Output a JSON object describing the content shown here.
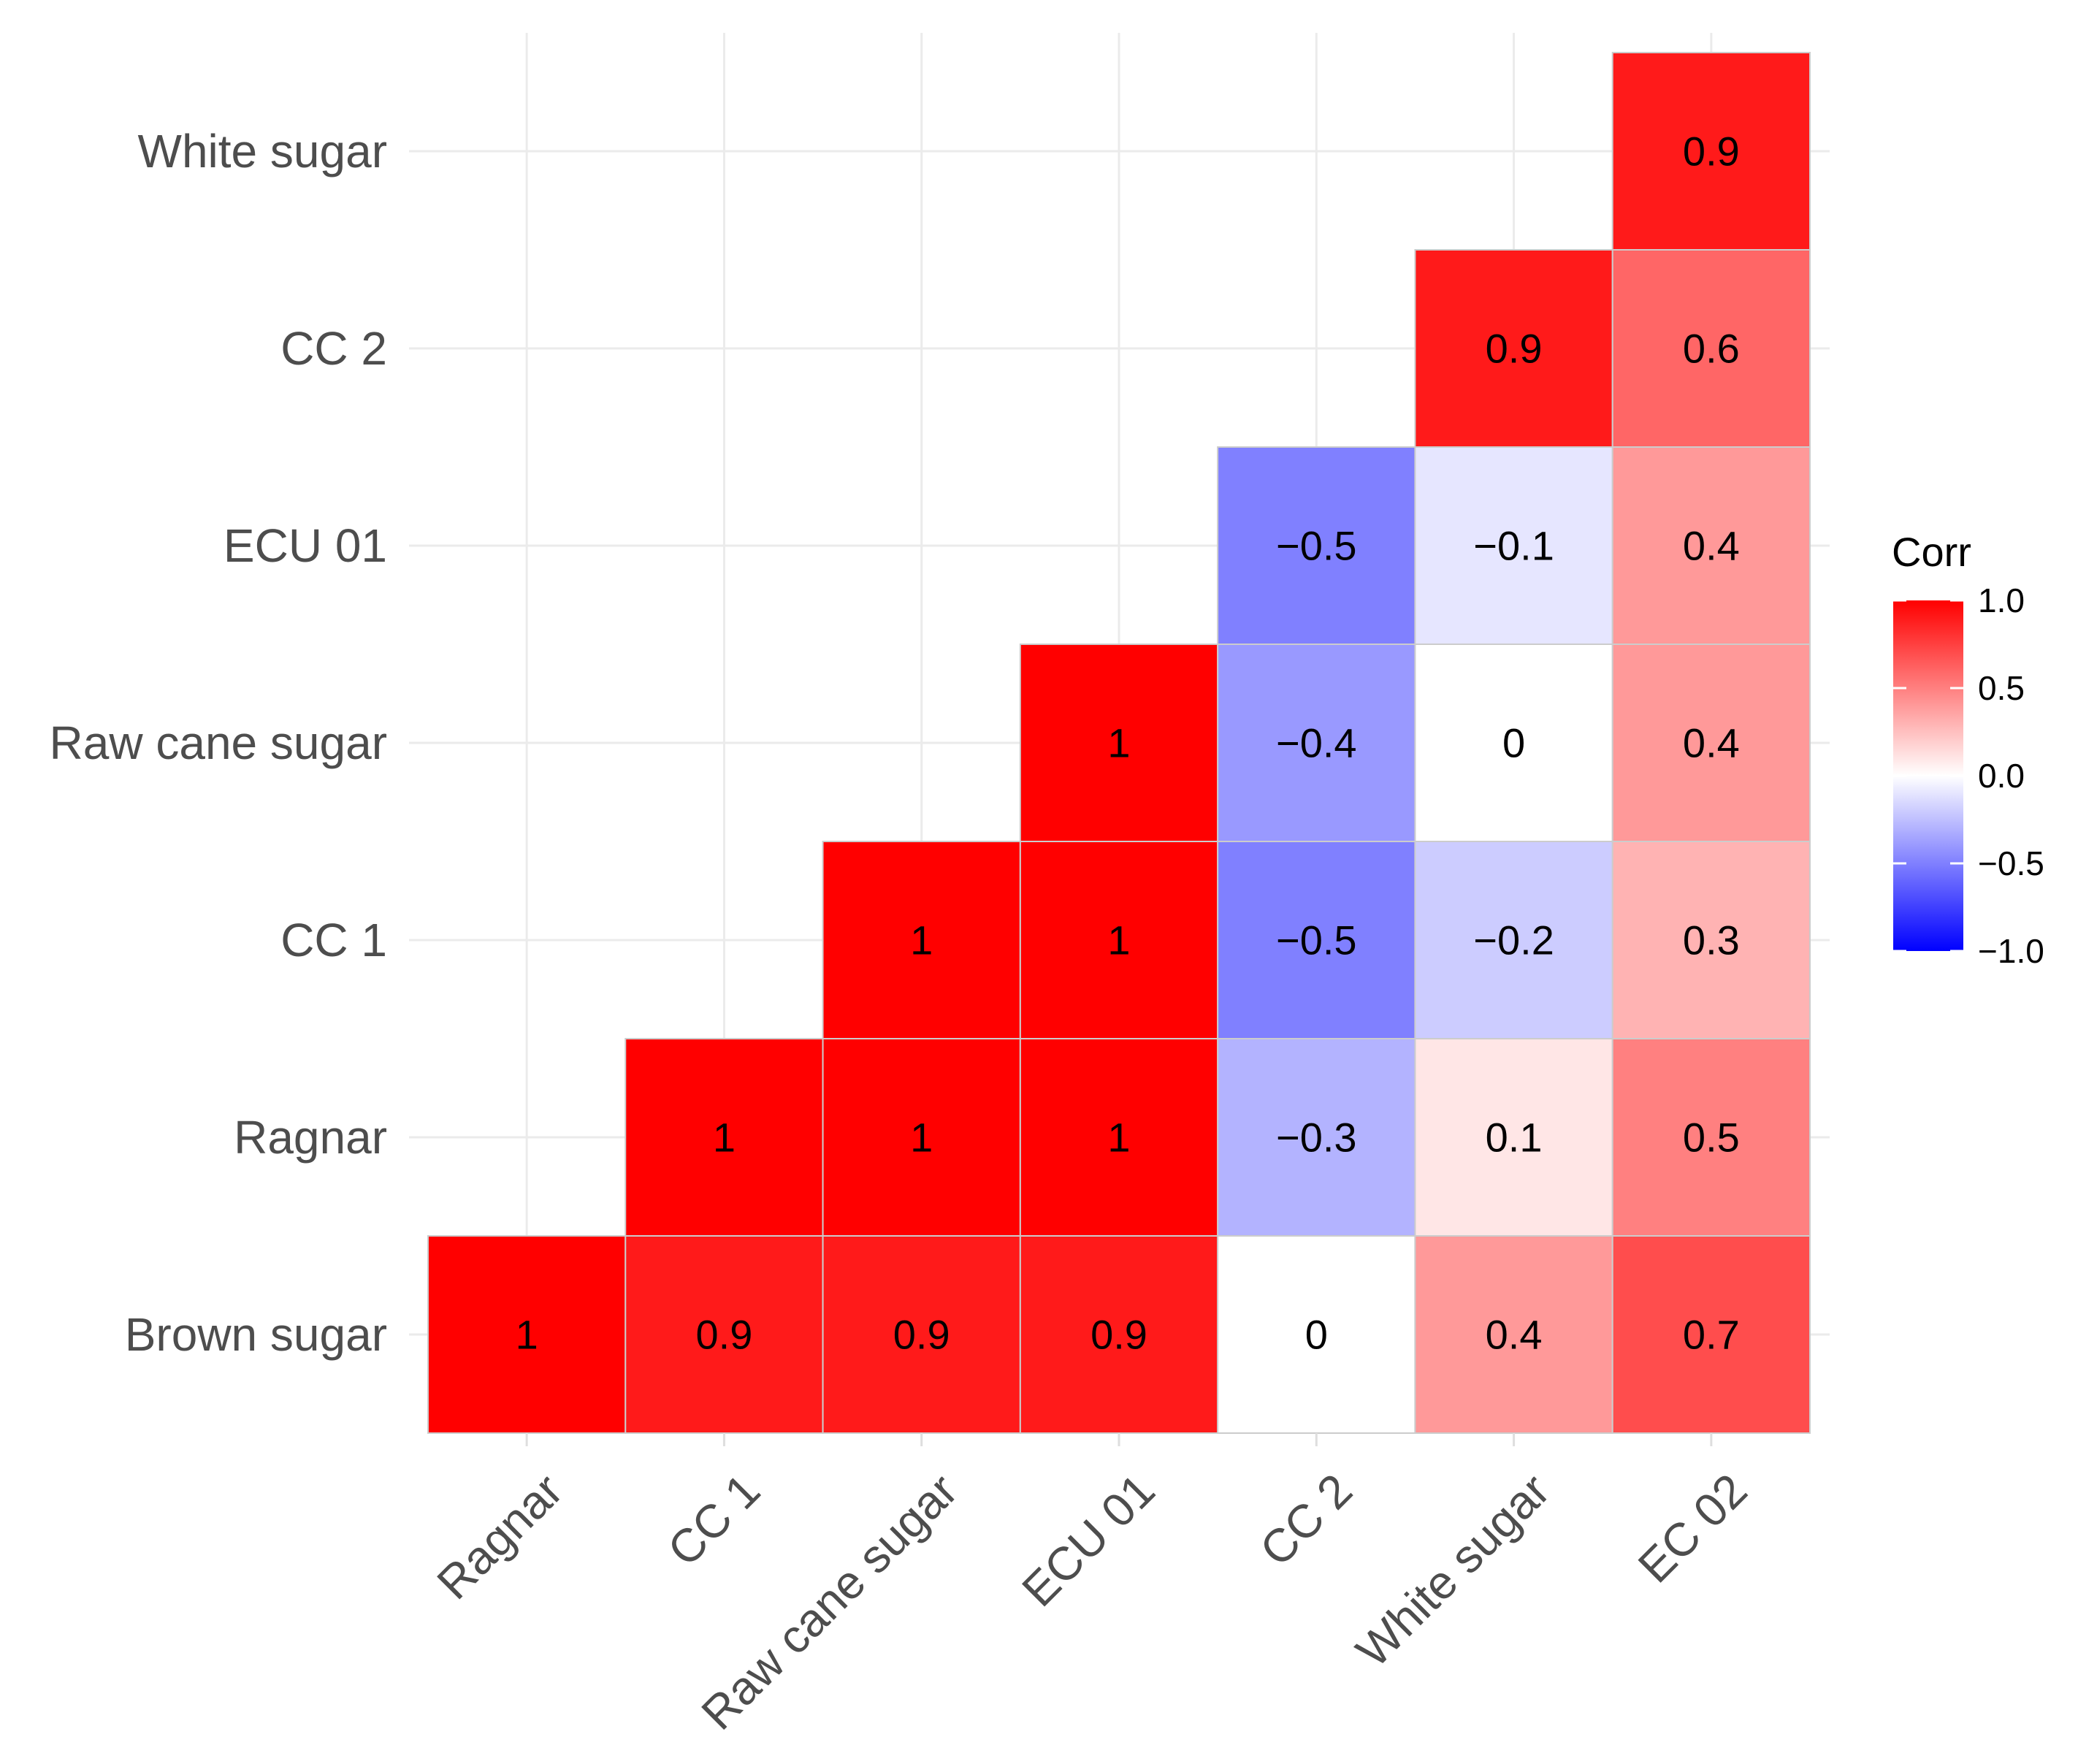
{
  "chart_data": {
    "type": "heatmap",
    "title": "",
    "xlabel": "",
    "ylabel": "",
    "x_categories": [
      "Ragnar",
      "CC 1",
      "Raw cane sugar",
      "ECU 01",
      "CC 2",
      "White sugar",
      "EC 02"
    ],
    "y_categories": [
      "Brown sugar",
      "Ragnar",
      "CC 1",
      "Raw cane sugar",
      "ECU 01",
      "CC 2",
      "White sugar"
    ],
    "cells": [
      {
        "x": "Ragnar",
        "y": "Brown sugar",
        "value": 1,
        "label": "1"
      },
      {
        "x": "CC 1",
        "y": "Brown sugar",
        "value": 0.9,
        "label": "0.9"
      },
      {
        "x": "Raw cane sugar",
        "y": "Brown sugar",
        "value": 0.9,
        "label": "0.9"
      },
      {
        "x": "ECU 01",
        "y": "Brown sugar",
        "value": 0.9,
        "label": "0.9"
      },
      {
        "x": "CC 2",
        "y": "Brown sugar",
        "value": 0,
        "label": "0"
      },
      {
        "x": "White sugar",
        "y": "Brown sugar",
        "value": 0.4,
        "label": "0.4"
      },
      {
        "x": "EC 02",
        "y": "Brown sugar",
        "value": 0.7,
        "label": "0.7"
      },
      {
        "x": "CC 1",
        "y": "Ragnar",
        "value": 1,
        "label": "1"
      },
      {
        "x": "Raw cane sugar",
        "y": "Ragnar",
        "value": 1,
        "label": "1"
      },
      {
        "x": "ECU 01",
        "y": "Ragnar",
        "value": 1,
        "label": "1"
      },
      {
        "x": "CC 2",
        "y": "Ragnar",
        "value": -0.3,
        "label": "−0.3"
      },
      {
        "x": "White sugar",
        "y": "Ragnar",
        "value": 0.1,
        "label": "0.1"
      },
      {
        "x": "EC 02",
        "y": "Ragnar",
        "value": 0.5,
        "label": "0.5"
      },
      {
        "x": "Raw cane sugar",
        "y": "CC 1",
        "value": 1,
        "label": "1"
      },
      {
        "x": "ECU 01",
        "y": "CC 1",
        "value": 1,
        "label": "1"
      },
      {
        "x": "CC 2",
        "y": "CC 1",
        "value": -0.5,
        "label": "−0.5"
      },
      {
        "x": "White sugar",
        "y": "CC 1",
        "value": -0.2,
        "label": "−0.2"
      },
      {
        "x": "EC 02",
        "y": "CC 1",
        "value": 0.3,
        "label": "0.3"
      },
      {
        "x": "ECU 01",
        "y": "Raw cane sugar",
        "value": 1,
        "label": "1"
      },
      {
        "x": "CC 2",
        "y": "Raw cane sugar",
        "value": -0.4,
        "label": "−0.4"
      },
      {
        "x": "White sugar",
        "y": "Raw cane sugar",
        "value": 0,
        "label": "0"
      },
      {
        "x": "EC 02",
        "y": "Raw cane sugar",
        "value": 0.4,
        "label": "0.4"
      },
      {
        "x": "CC 2",
        "y": "ECU 01",
        "value": -0.5,
        "label": "−0.5"
      },
      {
        "x": "White sugar",
        "y": "ECU 01",
        "value": -0.1,
        "label": "−0.1"
      },
      {
        "x": "EC 02",
        "y": "ECU 01",
        "value": 0.4,
        "label": "0.4"
      },
      {
        "x": "White sugar",
        "y": "CC 2",
        "value": 0.9,
        "label": "0.9"
      },
      {
        "x": "EC 02",
        "y": "CC 2",
        "value": 0.6,
        "label": "0.6"
      },
      {
        "x": "EC 02",
        "y": "White sugar",
        "value": 0.9,
        "label": "0.9"
      }
    ],
    "legend": {
      "title": "Corr",
      "position": "right",
      "range": [
        -1,
        1
      ],
      "ticks": [
        {
          "value": 1,
          "label": "1.0"
        },
        {
          "value": 0.5,
          "label": "0.5"
        },
        {
          "value": 0,
          "label": "0.0"
        },
        {
          "value": -0.5,
          "label": "−0.5"
        },
        {
          "value": -1,
          "label": "−1.0"
        }
      ]
    },
    "colors": {
      "high": "#ff0000",
      "mid": "#ffffff",
      "low": "#0000ff",
      "grid": "#ebebeb",
      "cell_border": "#cccccc"
    },
    "grid": true
  }
}
